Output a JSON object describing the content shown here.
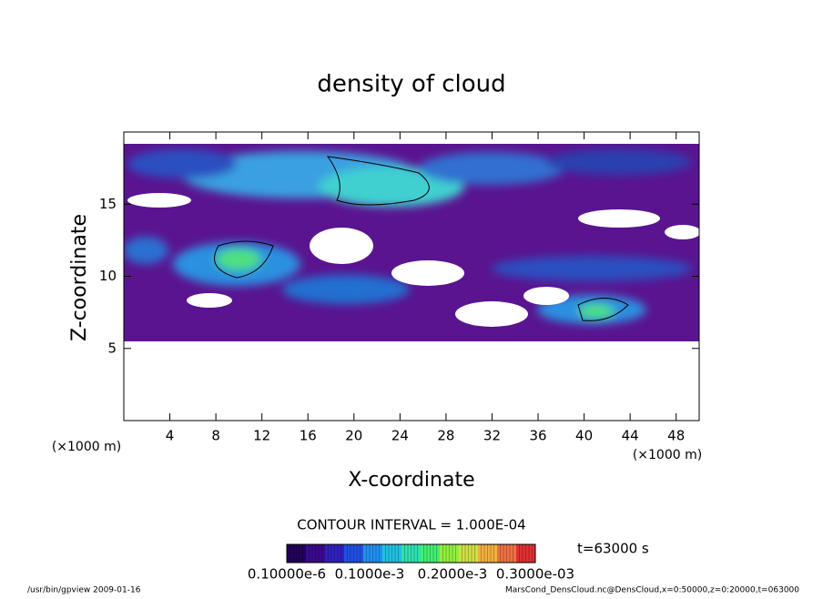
{
  "chart_data": {
    "type": "contour",
    "title": "density of cloud",
    "x_label": "X-coordinate",
    "y_label": "Z-coordinate",
    "x_unit_left": "(×1000 m)",
    "x_unit_right": "(×1000 m)",
    "xlim": [
      0,
      50
    ],
    "ylim": [
      0,
      20
    ],
    "xticks": [
      4,
      8,
      12,
      16,
      20,
      24,
      28,
      32,
      36,
      40,
      44,
      48
    ],
    "yticks": [
      5,
      10,
      15
    ],
    "contour_interval": "CONTOUR INTERVAL = 1.000E-04",
    "time_label": "t=63000 s",
    "colorbar_colors": [
      "#20005a",
      "#3a0a8a",
      "#3020c0",
      "#2050e0",
      "#2090f0",
      "#20c0e0",
      "#30e0b0",
      "#40f070",
      "#90f040",
      "#d0e040",
      "#f0b040",
      "#f07040",
      "#e03030"
    ],
    "colorbar_labels": [
      "0.10000e-6",
      "0.1000e-3",
      "0.2000e-3",
      "0.3000e-03"
    ],
    "footer_left": "/usr/bin/gpview  2009-01-16",
    "footer_right": "MarsCond_DensCloud.nc@DensCloud,x=0:50000,z=0:20000,t=063000"
  }
}
